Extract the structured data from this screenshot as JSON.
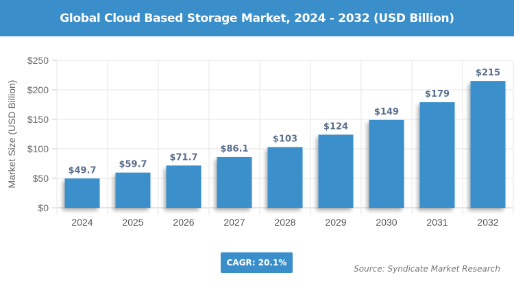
{
  "chart_data": {
    "type": "bar",
    "title": "Global Cloud Based Storage Market, 2024 - 2032 (USD Billion)",
    "xlabel": "",
    "ylabel": "Market Size (USD Billion)",
    "categories": [
      "2024",
      "2025",
      "2026",
      "2027",
      "2028",
      "2029",
      "2030",
      "2031",
      "2032"
    ],
    "values": [
      49.7,
      59.7,
      71.7,
      86.1,
      103,
      124,
      149,
      179,
      215
    ],
    "data_labels": [
      "$49.7",
      "$59.7",
      "$71.7",
      "$86.1",
      "$103",
      "$124",
      "$149",
      "$179",
      "$215"
    ],
    "ylim": [
      0,
      250
    ],
    "yticks": [
      0,
      50,
      100,
      150,
      200,
      250
    ],
    "ytick_labels": [
      "$0",
      "$50",
      "$100",
      "$150",
      "$200",
      "$250"
    ],
    "grid": true,
    "bar_color": "#3a8fcb",
    "label_color": "#5b6f8c"
  },
  "cagr_label": "CAGR: 20.1%",
  "source": "Source: Syndicate Market Research"
}
